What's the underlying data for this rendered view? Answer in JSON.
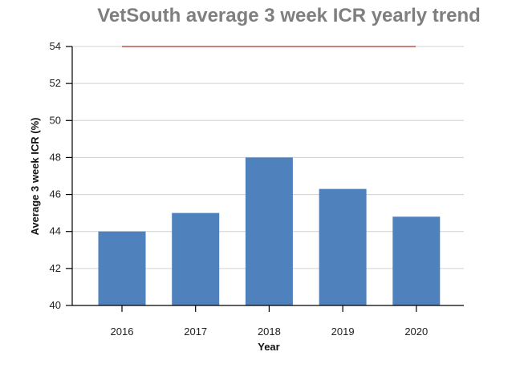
{
  "chart_data": {
    "type": "bar",
    "title": "VetSouth average 3 week ICR yearly trend",
    "xlabel": "Year",
    "ylabel": "Average 3 week ICR (%)",
    "categories": [
      "2016",
      "2017",
      "2018",
      "2019",
      "2020"
    ],
    "values": [
      44.0,
      45.0,
      48.0,
      46.3,
      44.8
    ],
    "ylim": [
      40,
      54
    ],
    "yticks": [
      "40",
      "42",
      "44",
      "46",
      "48",
      "50",
      "52",
      "54"
    ],
    "target_line": {
      "value": 54,
      "color": "#c0504d"
    },
    "bar_color": "#4f81bd",
    "grid": true
  }
}
